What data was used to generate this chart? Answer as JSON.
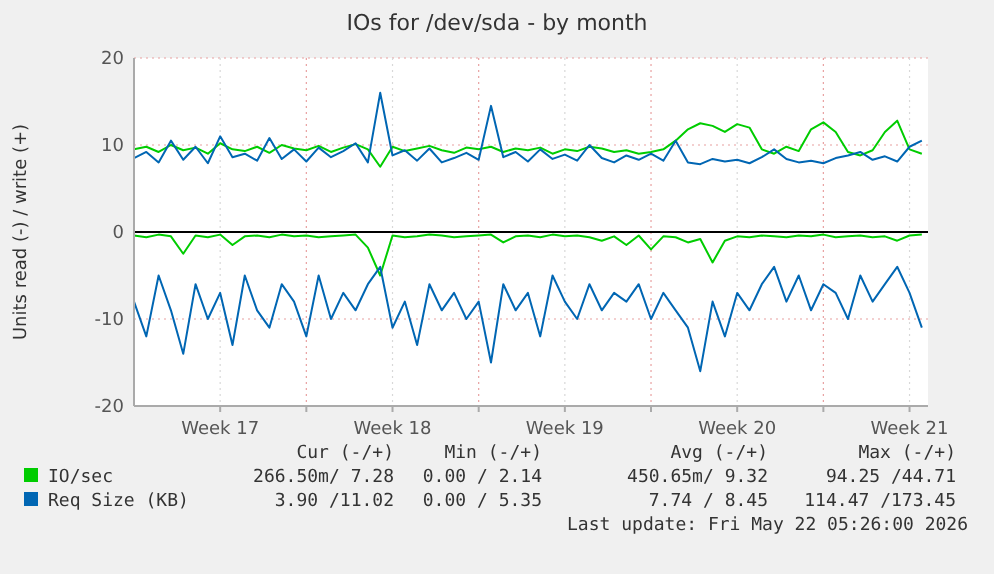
{
  "chart_data": {
    "type": "line",
    "title": "IOs for /dev/sda - by month",
    "ylabel": "Units read (-) / write (+)",
    "x": [
      "2026-04-20T00:00",
      "2026-04-20T12:00",
      "2026-04-21T00:00",
      "2026-04-21T12:00",
      "2026-04-22T00:00",
      "2026-04-22T12:00",
      "2026-04-23T00:00",
      "2026-04-23T12:00",
      "2026-04-24T00:00",
      "2026-04-24T12:00",
      "2026-04-25T00:00",
      "2026-04-25T12:00",
      "2026-04-26T00:00",
      "2026-04-26T12:00",
      "2026-04-27T00:00",
      "2026-04-27T12:00",
      "2026-04-28T00:00",
      "2026-04-28T12:00",
      "2026-04-29T00:00",
      "2026-04-29T12:00",
      "2026-04-30T00:00",
      "2026-04-30T12:00",
      "2026-05-01T00:00",
      "2026-05-01T12:00",
      "2026-05-02T00:00",
      "2026-05-02T12:00",
      "2026-05-03T00:00",
      "2026-05-03T12:00",
      "2026-05-04T00:00",
      "2026-05-04T12:00",
      "2026-05-05T00:00",
      "2026-05-05T12:00",
      "2026-05-06T00:00",
      "2026-05-06T12:00",
      "2026-05-07T00:00",
      "2026-05-07T12:00",
      "2026-05-08T00:00",
      "2026-05-08T12:00",
      "2026-05-09T00:00",
      "2026-05-09T12:00",
      "2026-05-10T00:00",
      "2026-05-10T12:00",
      "2026-05-11T00:00",
      "2026-05-11T12:00",
      "2026-05-12T00:00",
      "2026-05-12T12:00",
      "2026-05-13T00:00",
      "2026-05-13T12:00",
      "2026-05-14T00:00",
      "2026-05-14T12:00",
      "2026-05-15T00:00",
      "2026-05-15T12:00",
      "2026-05-16T00:00",
      "2026-05-16T12:00",
      "2026-05-17T00:00",
      "2026-05-17T12:00",
      "2026-05-18T00:00",
      "2026-05-18T12:00",
      "2026-05-19T00:00",
      "2026-05-19T12:00",
      "2026-05-20T00:00",
      "2026-05-20T12:00",
      "2026-05-21T00:00",
      "2026-05-21T12:00",
      "2026-05-22T00:00"
    ],
    "xlim": [
      "2026-04-20T00:00",
      "2026-05-22T06:00"
    ],
    "xticks": [
      {
        "value": "2026-04-23T12:00",
        "label": "Week 17"
      },
      {
        "value": "2026-04-27T00:00",
        "label": null
      },
      {
        "value": "2026-04-30T12:00",
        "label": "Week 18"
      },
      {
        "value": "2026-05-04T00:00",
        "label": null
      },
      {
        "value": "2026-05-07T12:00",
        "label": "Week 19"
      },
      {
        "value": "2026-05-11T00:00",
        "label": null
      },
      {
        "value": "2026-05-14T12:00",
        "label": "Week 20"
      },
      {
        "value": "2026-05-18T00:00",
        "label": null
      },
      {
        "value": "2026-05-21T12:00",
        "label": "Week 21"
      }
    ],
    "ylim": [
      -20,
      20
    ],
    "yticks": [
      -20,
      -10,
      0,
      10,
      20
    ],
    "grid": true,
    "legend": "bottom",
    "series": [
      {
        "color": "#00cc00",
        "values": [
          -0.4,
          -0.6,
          -0.3,
          -0.5,
          -2.5,
          -0.4,
          -0.6,
          -0.3,
          -1.5,
          -0.5,
          -0.4,
          -0.6,
          -0.3,
          -0.5,
          -0.4,
          -0.6,
          -0.5,
          -0.4,
          -0.3,
          -1.8,
          -5,
          -0.4,
          -0.6,
          -0.5,
          -0.3,
          -0.4,
          -0.6,
          -0.5,
          -0.4,
          -0.3,
          -1.2,
          -0.5,
          -0.4,
          -0.6,
          -0.3,
          -0.5,
          -0.4,
          -0.6,
          -1.0,
          -0.5,
          -1.5,
          -0.4,
          -2.0,
          -0.5,
          -0.6,
          -1.2,
          -0.8,
          -3.5,
          -1.0,
          -0.5,
          -0.6,
          -0.4,
          -0.5,
          -0.6,
          -0.4,
          -0.5,
          -0.3,
          -0.6,
          -0.5,
          -0.4,
          -0.6,
          -0.5,
          -1.0,
          -0.4,
          -0.3
        ]
      },
      {
        "name": "IO/sec",
        "color": "#00cc00",
        "values": [
          9.5,
          9.8,
          9.2,
          10,
          9.4,
          9.7,
          9.0,
          10.2,
          9.5,
          9.3,
          9.8,
          9.1,
          10,
          9.6,
          9.4,
          9.9,
          9.2,
          9.7,
          10.1,
          9.5,
          7.5,
          9.8,
          9.3,
          9.6,
          9.9,
          9.4,
          9.1,
          9.7,
          9.5,
          9.8,
          9.2,
          9.6,
          9.4,
          9.7,
          9.0,
          9.5,
          9.3,
          9.8,
          9.6,
          9.2,
          9.4,
          9.0,
          9.2,
          9.5,
          10.5,
          11.8,
          12.5,
          12.2,
          11.5,
          12.4,
          12.0,
          9.5,
          9.0,
          9.8,
          9.3,
          11.8,
          12.6,
          11.5,
          9.2,
          8.8,
          9.4,
          11.5,
          12.8,
          9.5,
          9.0
        ]
      },
      {
        "color": "#0066b3",
        "values": [
          -8,
          -12,
          -5,
          -9,
          -14,
          -6,
          -10,
          -7,
          -13,
          -5,
          -9,
          -11,
          -6,
          -8,
          -12,
          -5,
          -10,
          -7,
          -9,
          -6,
          -4,
          -11,
          -8,
          -13,
          -6,
          -9,
          -7,
          -10,
          -8,
          -15,
          -6,
          -9,
          -7,
          -12,
          -5,
          -8,
          -10,
          -6,
          -9,
          -7,
          -8,
          -6,
          -10,
          -7,
          -9,
          -11,
          -16,
          -8,
          -12,
          -7,
          -9,
          -6,
          -4,
          -8,
          -5,
          -9,
          -6,
          -7,
          -10,
          -5,
          -8,
          -6,
          -4,
          -7,
          -11
        ]
      },
      {
        "name": "Req Size (KB)",
        "color": "#0066b3",
        "values": [
          8.5,
          9.2,
          8.0,
          10.5,
          8.3,
          9.8,
          7.9,
          11,
          8.6,
          9.0,
          8.2,
          10.8,
          8.4,
          9.5,
          8.1,
          9.7,
          8.6,
          9.3,
          10.2,
          8.0,
          16,
          8.8,
          9.4,
          8.2,
          9.6,
          8.0,
          8.5,
          9.1,
          8.3,
          14.5,
          8.6,
          9.2,
          8.1,
          9.5,
          8.4,
          8.9,
          8.2,
          10,
          8.5,
          8.0,
          8.8,
          8.3,
          9.0,
          8.2,
          10.5,
          8.0,
          7.8,
          8.4,
          8.1,
          8.3,
          7.9,
          8.6,
          9.5,
          8.4,
          8.0,
          8.2,
          7.9,
          8.5,
          8.8,
          9.2,
          8.3,
          8.7,
          8.1,
          9.8,
          10.5
        ]
      }
    ],
    "annotations": [
      "Cur (-/+)",
      "Min (-/+)",
      "Avg (-/+)",
      "Max (-/+)",
      "266.50m/ 7.28",
      "0.00 / 2.14",
      "450.65m/ 9.32",
      "94.25 /44.71",
      "3.90 /11.02",
      "0.00 / 5.35",
      "7.74 / 8.45",
      "114.47 /173.45",
      "Last update: Fri May 22 05:26:00 2026"
    ]
  }
}
